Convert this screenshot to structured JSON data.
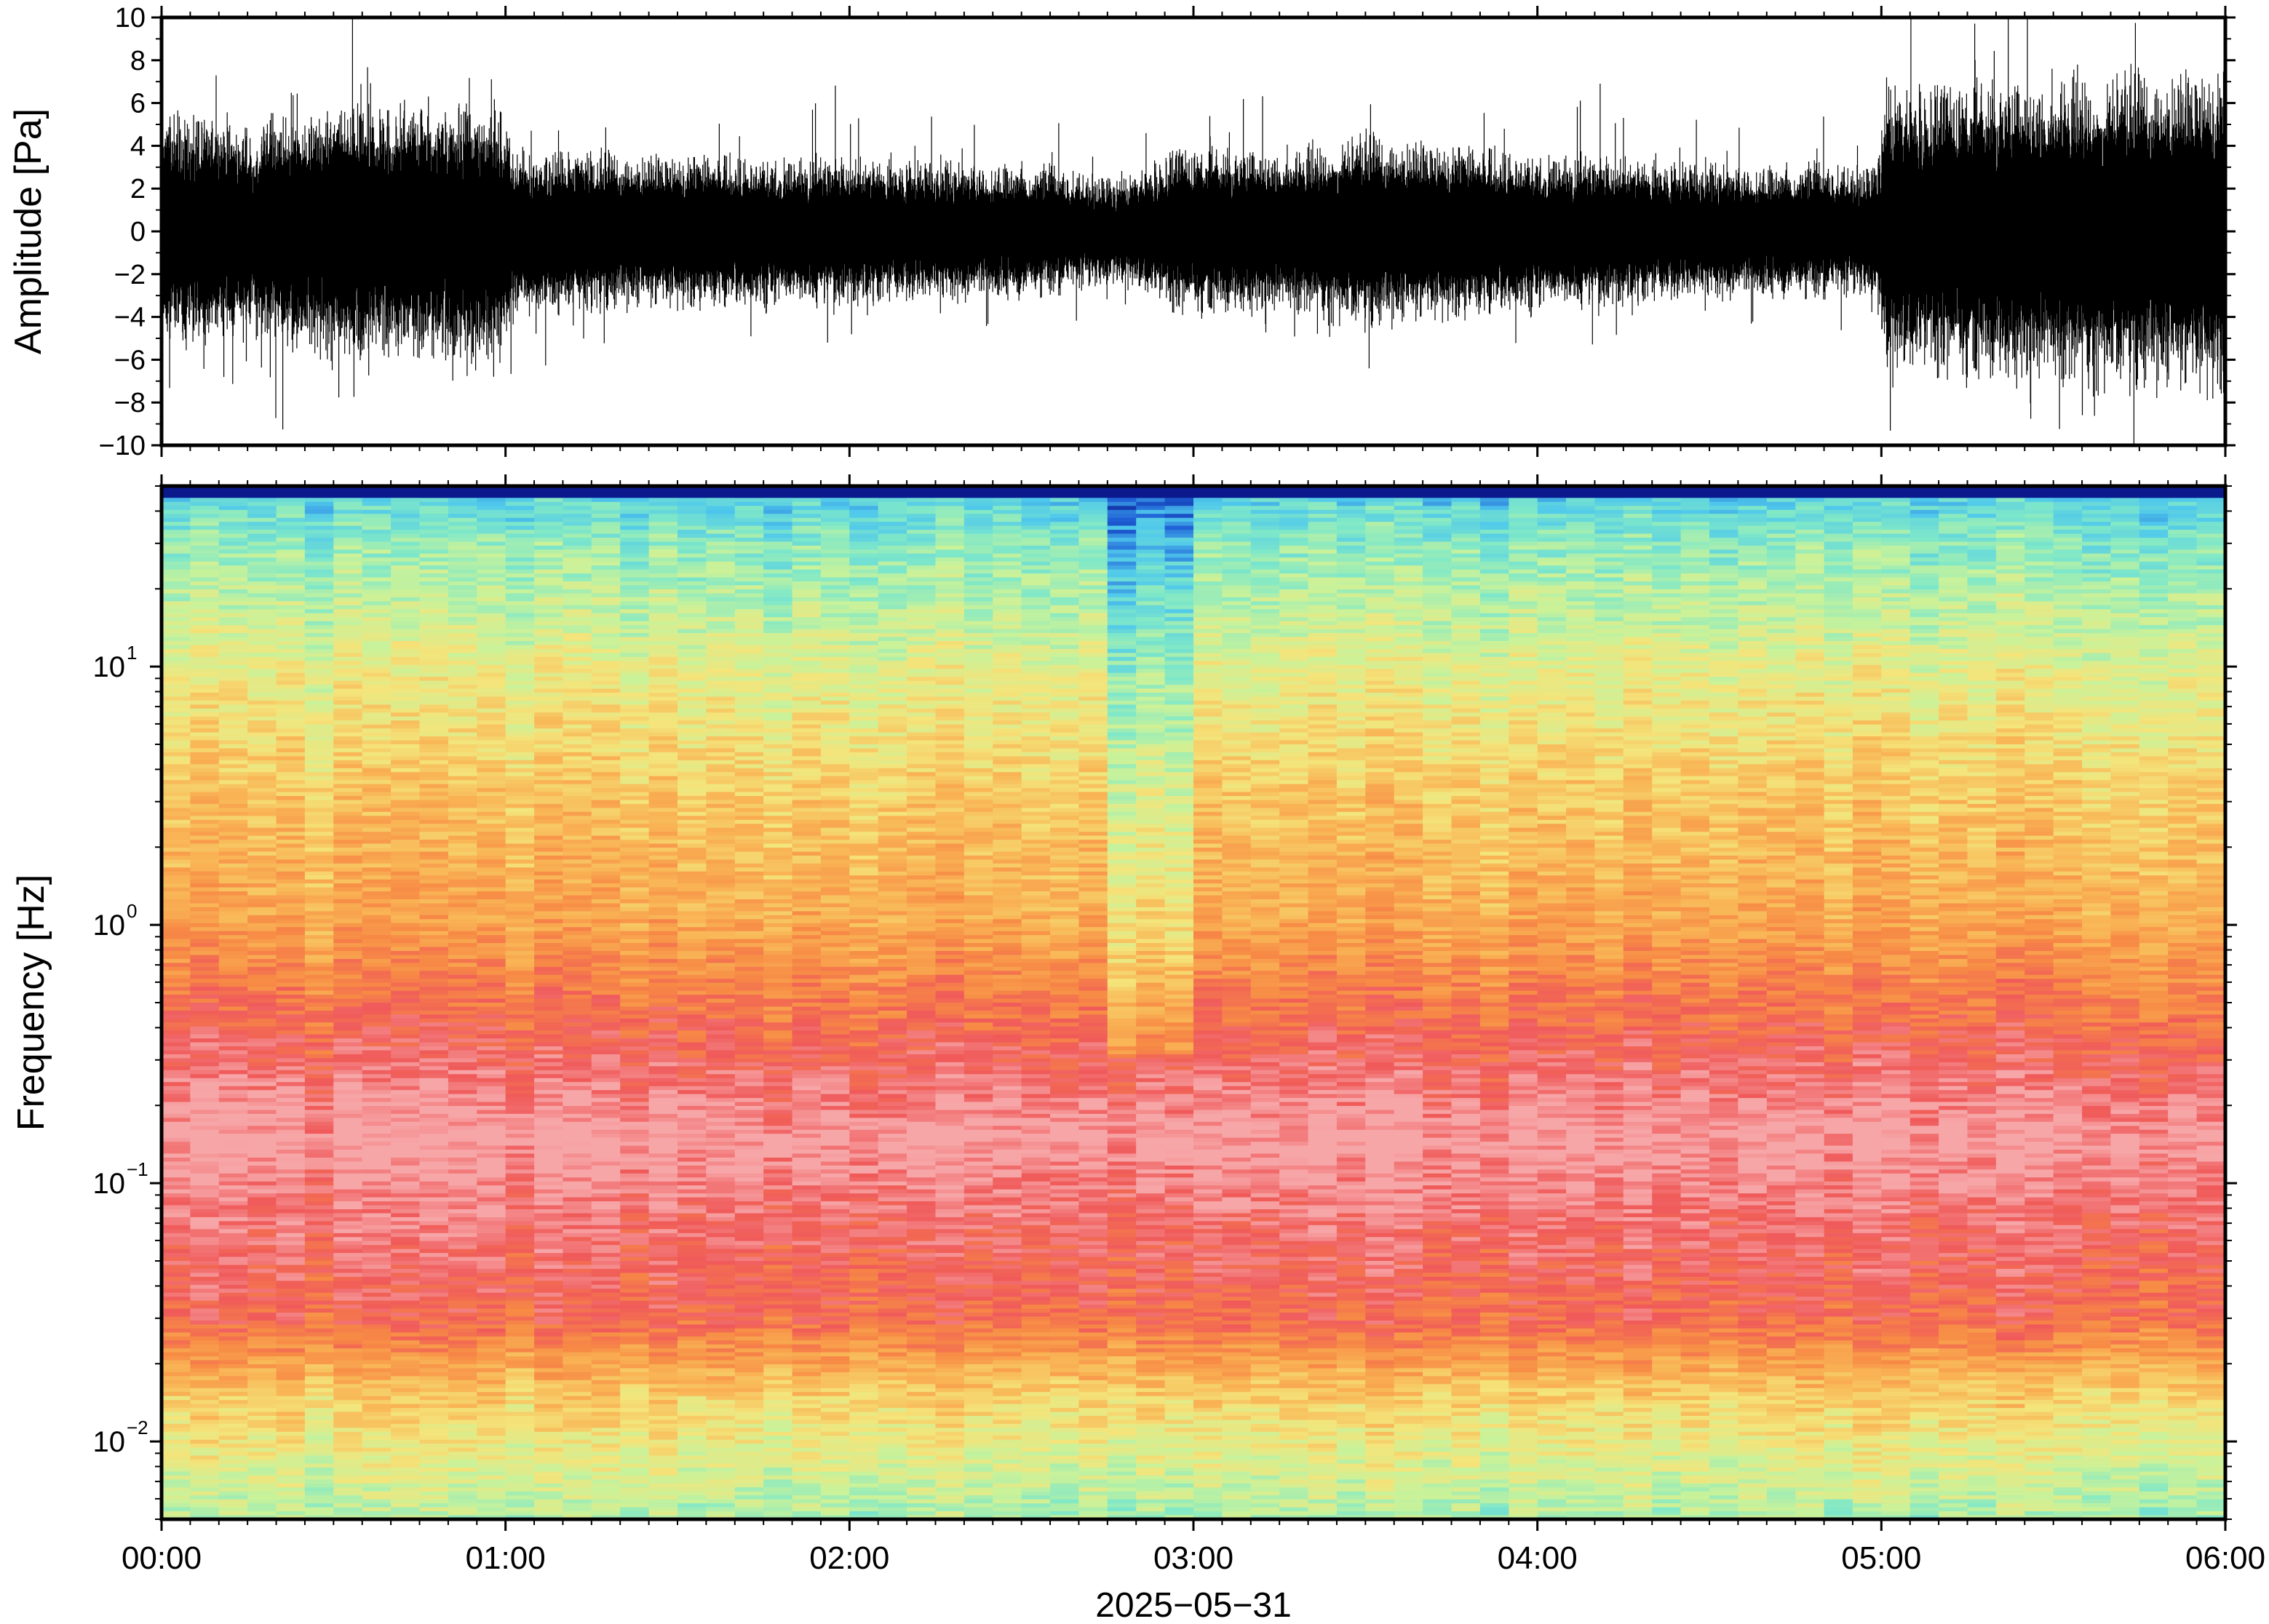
{
  "chart_data": [
    {
      "type": "line",
      "ylabel": "Amplitude [Pa]",
      "ylim": [
        -10,
        10
      ],
      "yticks": [
        {
          "value": 10,
          "label": "10"
        },
        {
          "value": 8,
          "label": "8"
        },
        {
          "value": 6,
          "label": "6"
        },
        {
          "value": 4,
          "label": "4"
        },
        {
          "value": 2,
          "label": "2"
        },
        {
          "value": 0,
          "label": "0"
        },
        {
          "value": -2,
          "label": "−2"
        },
        {
          "value": -4,
          "label": "−4"
        },
        {
          "value": -6,
          "label": "−6"
        },
        {
          "value": -8,
          "label": "−8"
        },
        {
          "value": -10,
          "label": "−10"
        }
      ],
      "xlim_hours": [
        0,
        6
      ],
      "envelope_hours": [
        0,
        0.25,
        0.5,
        0.75,
        0.98,
        1.02,
        1.5,
        2.0,
        2.5,
        2.8,
        2.95,
        3.3,
        3.5,
        4.0,
        4.5,
        4.98,
        5.02,
        5.5,
        6.0
      ],
      "envelope_pa": [
        4.5,
        4.3,
        4.8,
        5.0,
        5.0,
        3.2,
        3.0,
        2.8,
        2.6,
        2.0,
        3.2,
        3.2,
        3.8,
        3.0,
        2.6,
        2.5,
        5.5,
        6.0,
        6.4
      ],
      "grid": false
    },
    {
      "type": "heatmap",
      "ylabel": "Frequency [Hz]",
      "xlabel": "2025−05−31",
      "yscale": "log",
      "ylim": [
        0.005,
        50
      ],
      "yticks": [
        {
          "value": 10,
          "base": "10",
          "exp": "1"
        },
        {
          "value": 1,
          "base": "10",
          "exp": "0"
        },
        {
          "value": 0.1,
          "base": "10",
          "exp": "−1"
        },
        {
          "value": 0.01,
          "base": "10",
          "exp": "−2"
        }
      ],
      "xticks": [
        {
          "value": 0,
          "label": "00:00"
        },
        {
          "value": 1,
          "label": "01:00"
        },
        {
          "value": 2,
          "label": "02:00"
        },
        {
          "value": 3,
          "label": "03:00"
        },
        {
          "value": 4,
          "label": "04:00"
        },
        {
          "value": 5,
          "label": "05:00"
        },
        {
          "value": 6,
          "label": "06:00"
        }
      ],
      "colormap": [
        "#0a1a8c",
        "#1f5fd6",
        "#4fc8ec",
        "#7fe8c8",
        "#c9f29a",
        "#f4e47a",
        "#f9b455",
        "#f78a45",
        "#f05a5a",
        "#f7a6a8"
      ],
      "band_profile_hz": [
        50,
        45,
        30,
        10,
        3,
        1,
        0.4,
        0.15,
        0.06,
        0.03,
        0.015,
        0.005
      ],
      "band_profile_level": [
        0.0,
        0.25,
        0.35,
        0.5,
        0.62,
        0.7,
        0.85,
        1.0,
        0.9,
        0.85,
        0.6,
        0.4
      ],
      "grid": false
    }
  ]
}
